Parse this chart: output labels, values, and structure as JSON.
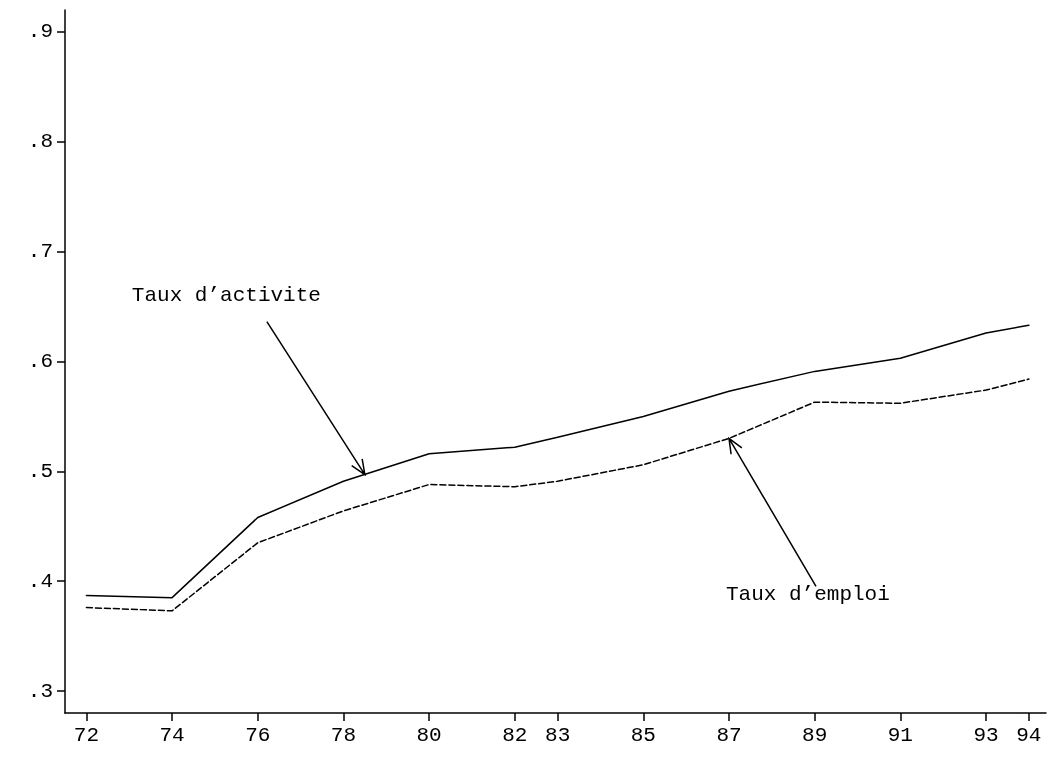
{
  "chart_data": {
    "type": "line",
    "x": [
      72,
      74,
      76,
      78,
      80,
      82,
      83,
      85,
      87,
      89,
      91,
      93,
      94
    ],
    "series": [
      {
        "color": "#000000",
        "line_style": "solid",
        "values": [
          0.387,
          0.385,
          0.458,
          0.491,
          0.516,
          0.522,
          0.531,
          0.55,
          0.573,
          0.591,
          0.603,
          0.626,
          0.633
        ]
      },
      {
        "color": "#000000",
        "line_style": "dashed",
        "values": [
          0.376,
          0.373,
          0.435,
          0.464,
          0.488,
          0.486,
          0.491,
          0.506,
          0.53,
          0.563,
          0.562,
          0.574,
          0.584
        ]
      }
    ],
    "xlim": [
      71.5,
      94.4
    ],
    "xticks": [
      72,
      74,
      76,
      78,
      80,
      82,
      83,
      85,
      87,
      89,
      91,
      93,
      94
    ],
    "ylim": [
      0.28,
      0.92
    ],
    "yticks": [
      {
        "value": 0.3,
        "label": ".3"
      },
      {
        "value": 0.4,
        "label": ".4"
      },
      {
        "value": 0.5,
        "label": ".5"
      },
      {
        "value": 0.6,
        "label": ".6"
      },
      {
        "value": 0.7,
        "label": ".7"
      },
      {
        "value": 0.8,
        "label": ".8"
      },
      {
        "value": 0.9,
        "label": ".9"
      }
    ],
    "annotations": [
      {
        "text": "Taux d’activite",
        "x": 78.5,
        "y": 0.497
      },
      {
        "text": "Taux d’emploi",
        "x": 87,
        "y": 0.53
      }
    ],
    "grid": false,
    "marker": "none"
  }
}
